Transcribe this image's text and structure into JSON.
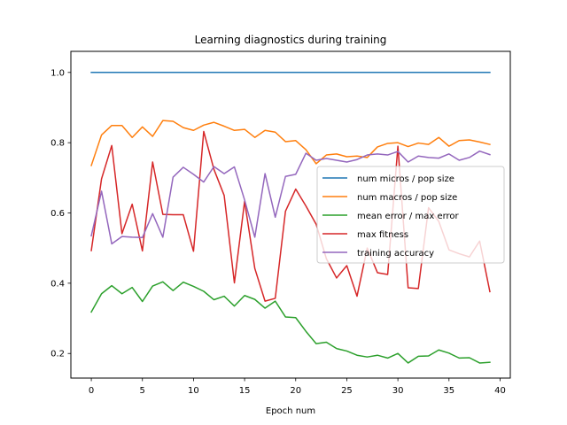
{
  "chart_data": {
    "type": "line",
    "title": "Learning diagnostics during training",
    "xlabel": "Epoch num",
    "ylabel": "",
    "xlim": [
      -2,
      41
    ],
    "ylim": [
      0.13,
      1.06
    ],
    "xticks": [
      0,
      5,
      10,
      15,
      20,
      25,
      30,
      35,
      40
    ],
    "yticks": [
      0.2,
      0.4,
      0.6,
      0.8,
      1.0
    ],
    "grid": false,
    "legend_position": "center-right",
    "x": [
      0,
      1,
      2,
      3,
      4,
      5,
      6,
      7,
      8,
      9,
      10,
      11,
      12,
      13,
      14,
      15,
      16,
      17,
      18,
      19,
      20,
      21,
      22,
      23,
      24,
      25,
      26,
      27,
      28,
      29,
      30,
      31,
      32,
      33,
      34,
      35,
      36,
      37,
      38,
      39
    ],
    "series": [
      {
        "name": "num micros / pop size",
        "color": "#1f77b4",
        "values": [
          1.0,
          1.0,
          1.0,
          1.0,
          1.0,
          1.0,
          1.0,
          1.0,
          1.0,
          1.0,
          1.0,
          1.0,
          1.0,
          1.0,
          1.0,
          1.0,
          1.0,
          1.0,
          1.0,
          1.0,
          1.0,
          1.0,
          1.0,
          1.0,
          1.0,
          1.0,
          1.0,
          1.0,
          1.0,
          1.0,
          1.0,
          1.0,
          1.0,
          1.0,
          1.0,
          1.0,
          1.0,
          1.0,
          1.0,
          1.0
        ]
      },
      {
        "name": "num macros / pop size",
        "color": "#ff7f0e",
        "values": [
          0.735,
          0.822,
          0.849,
          0.849,
          0.815,
          0.845,
          0.818,
          0.863,
          0.861,
          0.843,
          0.835,
          0.85,
          0.858,
          0.847,
          0.835,
          0.838,
          0.815,
          0.835,
          0.83,
          0.803,
          0.806,
          0.78,
          0.74,
          0.765,
          0.768,
          0.76,
          0.762,
          0.758,
          0.788,
          0.798,
          0.8,
          0.789,
          0.799,
          0.795,
          0.815,
          0.79,
          0.806,
          0.808,
          0.802,
          0.795
        ]
      },
      {
        "name": "mean error / max error",
        "color": "#2ca02c",
        "values": [
          0.318,
          0.37,
          0.393,
          0.37,
          0.388,
          0.348,
          0.392,
          0.404,
          0.379,
          0.403,
          0.391,
          0.377,
          0.353,
          0.363,
          0.335,
          0.365,
          0.354,
          0.329,
          0.349,
          0.304,
          0.302,
          0.263,
          0.228,
          0.232,
          0.214,
          0.207,
          0.195,
          0.19,
          0.195,
          0.187,
          0.2,
          0.173,
          0.192,
          0.193,
          0.21,
          0.201,
          0.187,
          0.188,
          0.173,
          0.175
        ]
      },
      {
        "name": "max fitness",
        "color": "#d62728",
        "values": [
          0.493,
          0.697,
          0.792,
          0.541,
          0.625,
          0.492,
          0.745,
          0.596,
          0.595,
          0.595,
          0.491,
          0.832,
          0.724,
          0.65,
          0.401,
          0.633,
          0.442,
          0.349,
          0.357,
          0.605,
          0.668,
          0.62,
          0.568,
          0.47,
          0.415,
          0.45,
          0.363,
          0.5,
          0.43,
          0.425,
          0.79,
          0.387,
          0.385,
          0.615,
          0.576,
          0.495,
          0.484,
          0.475,
          0.52,
          0.376
        ]
      },
      {
        "name": "training accuracy",
        "color": "#9467bd",
        "values": [
          0.535,
          0.662,
          0.512,
          0.533,
          0.531,
          0.53,
          0.598,
          0.531,
          0.702,
          0.73,
          0.71,
          0.688,
          0.732,
          0.712,
          0.731,
          0.637,
          0.531,
          0.712,
          0.588,
          0.704,
          0.71,
          0.77,
          0.75,
          0.755,
          0.75,
          0.745,
          0.752,
          0.765,
          0.768,
          0.765,
          0.775,
          0.745,
          0.762,
          0.758,
          0.756,
          0.768,
          0.75,
          0.758,
          0.776,
          0.766
        ]
      }
    ]
  }
}
